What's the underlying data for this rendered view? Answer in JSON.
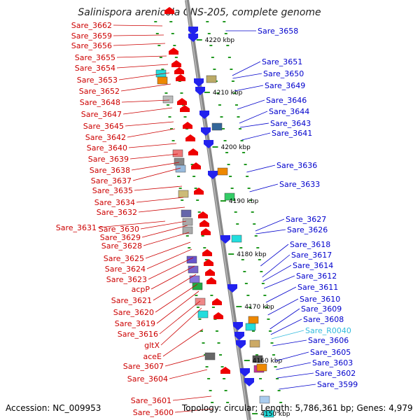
{
  "title": "Salinispora arenicola CNS-205, complete genome",
  "footer": {
    "accession": "Accession: NC_009953",
    "summary": "Topology: circular; Length: 5,786,361 bp; Genes: 4,979"
  },
  "colors": {
    "left_label": "#cc0000",
    "right_label": "#0000cc",
    "rna_label": "#33bbdd",
    "backbone": "#888888"
  },
  "ticks": [
    "4220 kbp",
    "4210 kbp",
    "4200 kbp",
    "4190 kbp",
    "4180 kbp",
    "4170 kbp",
    "4160 kbp",
    "4150 kbp"
  ],
  "left_labels": [
    "Sare_3662",
    "Sare_3659",
    "Sare_3656",
    "Sare_3655",
    "Sare_3654",
    "Sare_3653",
    "Sare_3652",
    "Sare_3648",
    "Sare_3647",
    "Sare_3645",
    "Sare_3642",
    "Sare_3640",
    "Sare_3639",
    "Sare_3638",
    "Sare_3637",
    "Sare_3635",
    "Sare_3634",
    "Sare_3632",
    "Sare_3631",
    "Sare_3630",
    "Sare_3629",
    "Sare_3628",
    "Sare_3625",
    "Sare_3624",
    "Sare_3623",
    "acpP",
    "Sare_3621",
    "Sare_3620",
    "Sare_3619",
    "Sare_3616",
    "gltX",
    "aceE",
    "Sare_3607",
    "Sare_3604",
    "Sare_3601",
    "Sare_3600"
  ],
  "right_labels": [
    "Sare_3658",
    "Sare_3651",
    "Sare_3650",
    "Sare_3649",
    "Sare_3646",
    "Sare_3644",
    "Sare_3643",
    "Sare_3641",
    "Sare_3636",
    "Sare_3633",
    "Sare_3627",
    "Sare_3626",
    "Sare_3618",
    "Sare_3617",
    "Sare_3614",
    "Sare_3612",
    "Sare_3611",
    "Sare_3610",
    "Sare_3609",
    "Sare_3608",
    "Sare_R0040",
    "Sare_3606",
    "Sare_3605",
    "Sare_3603",
    "Sare_3602",
    "Sare_3599"
  ]
}
